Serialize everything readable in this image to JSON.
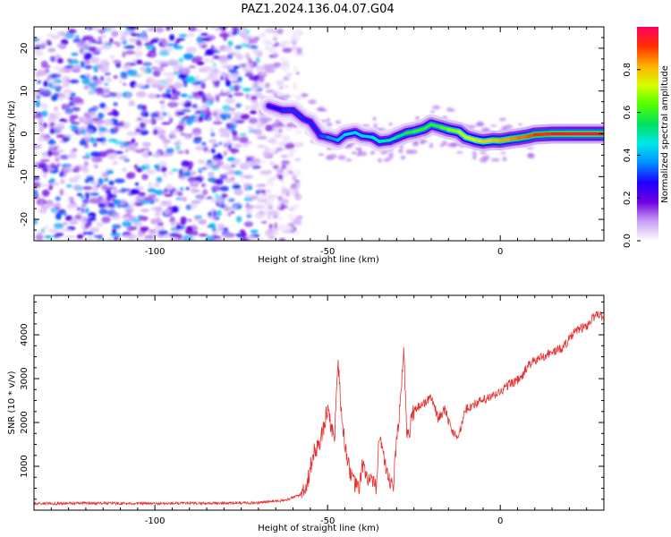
{
  "figure": {
    "title": "PAZ1.2024.136.04.07.G04"
  },
  "chart_data": [
    {
      "type": "heatmap",
      "xlabel": "Height of straight line (km)",
      "ylabel": "Frequency (Hz)",
      "xlim": [
        -135,
        30
      ],
      "ylim": [
        -25,
        25
      ],
      "xticks": [
        -100,
        -50,
        0
      ],
      "yticks": [
        -20,
        -10,
        0,
        10,
        20
      ],
      "grid": false,
      "colorbar": {
        "label": "Normalized spectral amplitude",
        "range": [
          0.0,
          1.0
        ],
        "ticks": [
          0.0,
          0.2,
          0.4,
          0.6,
          0.8
        ],
        "colormap": [
          "#ffffff",
          "#c8a0f5",
          "#7000e0",
          "#1e00ff",
          "#0090ff",
          "#00e8e8",
          "#00e060",
          "#50ff00",
          "#d8ff00",
          "#ffb000",
          "#ff3000",
          "#ff0060"
        ]
      },
      "ridge": {
        "x": [
          -67,
          -63,
          -60,
          -57,
          -55,
          -52,
          -50,
          -47,
          -45,
          -42,
          -40,
          -37,
          -35,
          -32,
          -30,
          -27,
          -25,
          -22,
          -20,
          -17,
          -15,
          -12,
          -10,
          -7,
          -5,
          -2,
          0,
          3,
          5,
          8,
          10,
          15,
          20,
          25,
          30
        ],
        "y": [
          6.5,
          5.5,
          5.5,
          3.5,
          2.8,
          -0.5,
          -0.8,
          -1.5,
          -0.2,
          0.3,
          -0.5,
          -0.8,
          -1.8,
          -1.5,
          -0.8,
          0.2,
          0.5,
          1.2,
          2.2,
          1.5,
          1.0,
          0.5,
          -0.8,
          -1.5,
          -1.8,
          -1.5,
          -1.6,
          -1.2,
          -1.0,
          -0.6,
          -0.2,
          0.0,
          0.0,
          0.0,
          0.0
        ],
        "amplitude": [
          0.25,
          0.3,
          0.3,
          0.3,
          0.28,
          0.3,
          0.35,
          0.4,
          0.42,
          0.45,
          0.42,
          0.45,
          0.5,
          0.48,
          0.5,
          0.55,
          0.6,
          0.6,
          0.58,
          0.6,
          0.65,
          0.7,
          0.72,
          0.75,
          0.78,
          0.8,
          0.82,
          0.84,
          0.86,
          0.88,
          0.9,
          0.95,
          0.97,
          0.97,
          0.97
        ]
      },
      "noise_region": {
        "x_range": [
          -135,
          -70
        ],
        "amplitude_range": [
          0.02,
          0.2
        ]
      }
    },
    {
      "type": "line",
      "xlabel": "Height of straight line (km)",
      "ylabel": "SNR (10 * v/v)",
      "xlim": [
        -135,
        30
      ],
      "ylim": [
        0,
        4900
      ],
      "xticks": [
        -100,
        -50,
        0
      ],
      "yticks": [
        1000,
        2000,
        3000,
        4000
      ],
      "grid": false,
      "color": "#e83030",
      "x": [
        -135,
        -120,
        -100,
        -80,
        -70,
        -62,
        -58,
        -56,
        -54,
        -52,
        -50,
        -48,
        -47,
        -46,
        -45,
        -43,
        -41,
        -40,
        -38,
        -36,
        -35,
        -33,
        -31,
        -30,
        -29,
        -28,
        -27,
        -25,
        -23,
        -21,
        -20,
        -18,
        -16,
        -14,
        -12,
        -10,
        -8,
        -5,
        -2,
        0,
        3,
        6,
        8,
        10,
        12,
        15,
        18,
        20,
        22,
        25,
        27,
        28,
        30
      ],
      "y": [
        150,
        160,
        150,
        160,
        170,
        230,
        350,
        600,
        1300,
        1600,
        2300,
        1600,
        3500,
        2200,
        1500,
        700,
        450,
        1000,
        700,
        500,
        1800,
        800,
        500,
        1600,
        2400,
        3700,
        1600,
        2300,
        2400,
        2500,
        2600,
        2100,
        2300,
        1800,
        1700,
        2300,
        2400,
        2500,
        2600,
        2700,
        2900,
        3000,
        3300,
        3400,
        3500,
        3600,
        3700,
        3900,
        4100,
        4200,
        4400,
        4500,
        4400
      ]
    }
  ]
}
